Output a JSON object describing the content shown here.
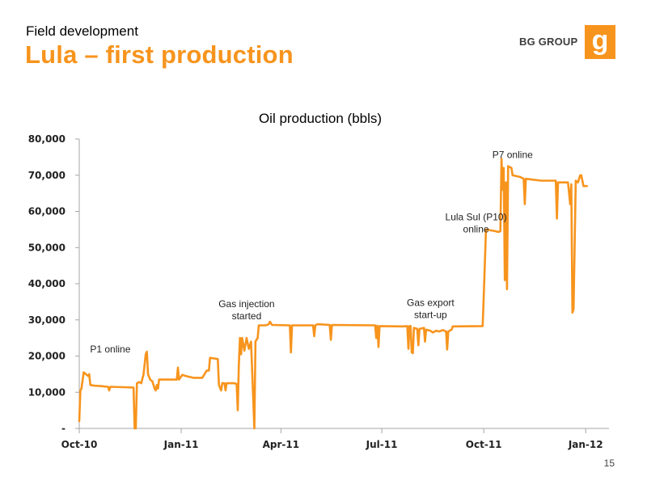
{
  "header": {
    "subtitle": "Field development",
    "title": "Lula – first production",
    "brand": "BG GROUP",
    "logo_glyph": "g"
  },
  "colors": {
    "accent": "#f7941d",
    "line": "#f7941d",
    "axis": "#a6a6a6",
    "text": "#000000"
  },
  "footer": {
    "page_number": "15"
  },
  "chart_data": {
    "type": "line",
    "title": "Oil production (bbls)",
    "xlabel": "",
    "ylabel": "",
    "ylim": [
      0,
      80000
    ],
    "y_ticks": [
      0,
      10000,
      20000,
      30000,
      40000,
      50000,
      60000,
      70000,
      80000
    ],
    "y_tick_labels": [
      "-",
      "10,000",
      "20,000",
      "30,000",
      "40,000",
      "50,000",
      "60,000",
      "70,000",
      "80,000"
    ],
    "x_ticks": [
      "2010-10-01",
      "2011-01-01",
      "2011-04-01",
      "2011-07-01",
      "2011-10-01",
      "2012-01-01"
    ],
    "x_tick_labels": [
      "Oct-10",
      "Jan-11",
      "Apr-11",
      "Jul-11",
      "Oct-11",
      "Jan-12"
    ],
    "xlim": [
      "2010-10-01",
      "2012-01-22"
    ],
    "grid": false,
    "legend": "none",
    "series": [
      {
        "points": [
          [
            "2010-10-01",
            2000
          ],
          [
            "2010-10-02",
            10500
          ],
          [
            "2010-10-03",
            11000
          ],
          [
            "2010-10-05",
            15500
          ],
          [
            "2010-10-07",
            15000
          ],
          [
            "2010-10-09",
            14500
          ],
          [
            "2010-10-10",
            15000
          ],
          [
            "2010-10-11",
            12000
          ],
          [
            "2010-10-15",
            11800
          ],
          [
            "2010-10-20",
            11700
          ],
          [
            "2010-10-27",
            11500
          ],
          [
            "2010-10-28",
            10500
          ],
          [
            "2010-10-29",
            11500
          ],
          [
            "2010-11-10",
            11400
          ],
          [
            "2010-11-19",
            11300
          ],
          [
            "2010-11-20",
            0
          ],
          [
            "2010-11-21",
            0
          ],
          [
            "2010-11-22",
            12500
          ],
          [
            "2010-11-24",
            12800
          ],
          [
            "2010-11-26",
            12500
          ],
          [
            "2010-11-28",
            15000
          ],
          [
            "2010-11-30",
            20500
          ],
          [
            "2010-12-01",
            21200
          ],
          [
            "2010-12-02",
            15000
          ],
          [
            "2010-12-04",
            13500
          ],
          [
            "2010-12-06",
            13000
          ],
          [
            "2010-12-08",
            11000
          ],
          [
            "2010-12-09",
            10500
          ],
          [
            "2010-12-10",
            12000
          ],
          [
            "2010-12-11",
            11000
          ],
          [
            "2010-12-12",
            13500
          ],
          [
            "2010-12-20",
            13500
          ],
          [
            "2010-12-28",
            13500
          ],
          [
            "2010-12-29",
            16800
          ],
          [
            "2010-12-30",
            13500
          ],
          [
            "2011-01-02",
            14800
          ],
          [
            "2011-01-05",
            14500
          ],
          [
            "2011-01-12",
            14000
          ],
          [
            "2011-01-20",
            14000
          ],
          [
            "2011-01-24",
            16000
          ],
          [
            "2011-01-26",
            16000
          ],
          [
            "2011-01-27",
            19500
          ],
          [
            "2011-02-03",
            19200
          ],
          [
            "2011-02-04",
            12000
          ],
          [
            "2011-02-06",
            10500
          ],
          [
            "2011-02-07",
            12500
          ],
          [
            "2011-02-09",
            12500
          ],
          [
            "2011-02-10",
            10500
          ],
          [
            "2011-02-11",
            12500
          ],
          [
            "2011-02-18",
            12500
          ],
          [
            "2011-02-20",
            12300
          ],
          [
            "2011-02-21",
            5000
          ],
          [
            "2011-02-22",
            17500
          ],
          [
            "2011-02-23",
            25000
          ],
          [
            "2011-02-24",
            20500
          ],
          [
            "2011-02-25",
            25000
          ],
          [
            "2011-02-27",
            21500
          ],
          [
            "2011-03-01",
            25000
          ],
          [
            "2011-03-03",
            22000
          ],
          [
            "2011-03-05",
            24000
          ],
          [
            "2011-03-08",
            0
          ],
          [
            "2011-03-09",
            24000
          ],
          [
            "2011-03-11",
            25000
          ],
          [
            "2011-03-12",
            28500
          ],
          [
            "2011-03-18",
            28500
          ],
          [
            "2011-03-21",
            28800
          ],
          [
            "2011-03-22",
            29500
          ],
          [
            "2011-03-24",
            28600
          ],
          [
            "2011-04-09",
            28500
          ],
          [
            "2011-04-10",
            21000
          ],
          [
            "2011-04-11",
            28500
          ],
          [
            "2011-04-30",
            28500
          ],
          [
            "2011-05-01",
            25500
          ],
          [
            "2011-05-02",
            28500
          ],
          [
            "2011-05-04",
            28800
          ],
          [
            "2011-05-15",
            28600
          ],
          [
            "2011-05-16",
            24500
          ],
          [
            "2011-05-17",
            28600
          ],
          [
            "2011-06-25",
            28500
          ],
          [
            "2011-06-26",
            25000
          ],
          [
            "2011-06-27",
            28400
          ],
          [
            "2011-06-28",
            22500
          ],
          [
            "2011-06-29",
            28300
          ],
          [
            "2011-07-20",
            28200
          ],
          [
            "2011-07-24",
            28300
          ],
          [
            "2011-07-25",
            22000
          ],
          [
            "2011-07-26",
            28300
          ],
          [
            "2011-07-27",
            28300
          ],
          [
            "2011-07-28",
            21000
          ],
          [
            "2011-07-29",
            20800
          ],
          [
            "2011-07-30",
            27800
          ],
          [
            "2011-08-02",
            27500
          ],
          [
            "2011-08-03",
            23000
          ],
          [
            "2011-08-04",
            27500
          ],
          [
            "2011-08-08",
            27800
          ],
          [
            "2011-08-09",
            24000
          ],
          [
            "2011-08-10",
            27300
          ],
          [
            "2011-08-14",
            27000
          ],
          [
            "2011-08-16",
            26500
          ],
          [
            "2011-08-19",
            27000
          ],
          [
            "2011-08-22",
            26800
          ],
          [
            "2011-08-25",
            27200
          ],
          [
            "2011-08-28",
            26800
          ],
          [
            "2011-08-29",
            21800
          ],
          [
            "2011-08-30",
            26800
          ],
          [
            "2011-09-02",
            27300
          ],
          [
            "2011-09-03",
            28200
          ],
          [
            "2011-09-30",
            28300
          ],
          [
            "2011-10-01",
            37000
          ],
          [
            "2011-10-03",
            55000
          ],
          [
            "2011-10-12",
            54500
          ],
          [
            "2011-10-14",
            54300
          ],
          [
            "2011-10-16",
            54500
          ],
          [
            "2011-10-17",
            74500
          ],
          [
            "2011-10-18",
            66000
          ],
          [
            "2011-10-19",
            72000
          ],
          [
            "2011-10-20",
            41000
          ],
          [
            "2011-10-21",
            68000
          ],
          [
            "2011-10-22",
            38500
          ],
          [
            "2011-10-23",
            72500
          ],
          [
            "2011-10-26",
            72000
          ],
          [
            "2011-10-27",
            70000
          ],
          [
            "2011-11-03",
            69500
          ],
          [
            "2011-11-06",
            69000
          ],
          [
            "2011-11-07",
            62000
          ],
          [
            "2011-11-08",
            69000
          ],
          [
            "2011-11-22",
            68500
          ],
          [
            "2011-12-05",
            68500
          ],
          [
            "2011-12-06",
            58000
          ],
          [
            "2011-12-07",
            68000
          ],
          [
            "2011-12-16",
            68000
          ],
          [
            "2011-12-17",
            65000
          ],
          [
            "2011-12-18",
            62000
          ],
          [
            "2011-12-19",
            67500
          ],
          [
            "2011-12-20",
            32000
          ],
          [
            "2011-12-21",
            33000
          ],
          [
            "2011-12-23",
            68500
          ],
          [
            "2011-12-25",
            68000
          ],
          [
            "2011-12-27",
            70000
          ],
          [
            "2011-12-28",
            70000
          ],
          [
            "2011-12-30",
            67000
          ],
          [
            "2012-01-02",
            67000
          ]
        ]
      }
    ],
    "annotations": [
      {
        "lines": [
          "P1 online"
        ],
        "x": "2010-10-29",
        "y": 21000,
        "align": "middle"
      },
      {
        "lines": [
          "Gas injection",
          "started"
        ],
        "x": "2011-03-01",
        "y": 33500,
        "align": "middle"
      },
      {
        "lines": [
          "Gas export",
          "start-up"
        ],
        "x": "2011-08-14",
        "y": 33800,
        "align": "middle"
      },
      {
        "lines": [
          "Lula Sul (P10)",
          "online"
        ],
        "x": "2011-09-24",
        "y": 57500,
        "align": "middle"
      },
      {
        "lines": [
          "P7 online"
        ],
        "x": "2011-10-27",
        "y": 74800,
        "align": "middle"
      }
    ]
  }
}
